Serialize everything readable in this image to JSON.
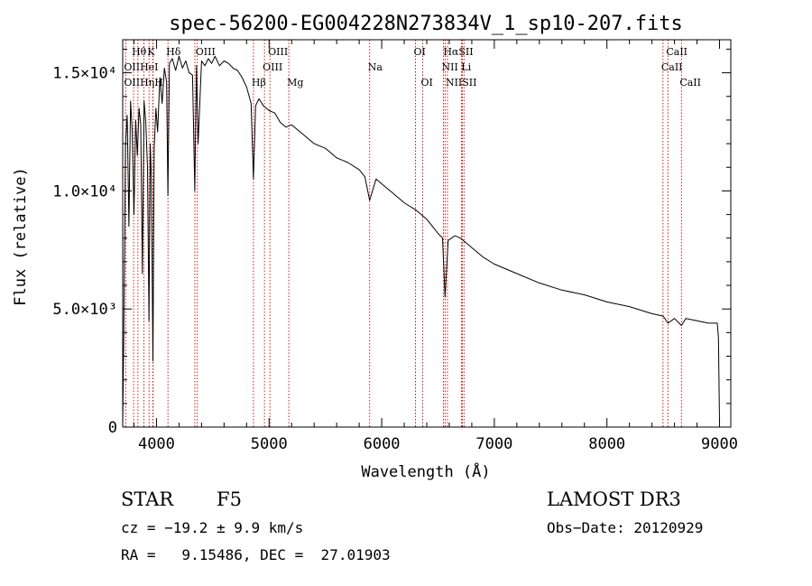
{
  "chart_data": {
    "type": "line",
    "title": "spec-56200-EG004228N273834V_1_sp10-207.fits",
    "xlabel": "Wavelength (Å)",
    "ylabel": "Flux (relative)",
    "xlim": [
      3700,
      9100
    ],
    "ylim": [
      0,
      16400
    ],
    "x_ticks": [
      {
        "value": 4000,
        "label": "4000"
      },
      {
        "value": 5000,
        "label": "5000"
      },
      {
        "value": 6000,
        "label": "6000"
      },
      {
        "value": 7000,
        "label": "7000"
      },
      {
        "value": 8000,
        "label": "8000"
      },
      {
        "value": 9000,
        "label": "9000"
      }
    ],
    "y_ticks": [
      {
        "value": 0,
        "label": "0"
      },
      {
        "value": 5000,
        "label": "5.0×10³"
      },
      {
        "value": 10000,
        "label": "1.0×10⁴"
      },
      {
        "value": 15000,
        "label": "1.5×10⁴"
      }
    ],
    "series": [
      {
        "name": "spectrum",
        "color": "#000000",
        "x": [
          3700,
          3710,
          3725,
          3740,
          3755,
          3770,
          3785,
          3800,
          3815,
          3830,
          3845,
          3860,
          3875,
          3890,
          3905,
          3920,
          3933,
          3945,
          3955,
          3968,
          3980,
          3995,
          4010,
          4030,
          4050,
          4070,
          4090,
          4101,
          4115,
          4140,
          4170,
          4200,
          4230,
          4260,
          4290,
          4320,
          4340,
          4355,
          4370,
          4400,
          4430,
          4460,
          4490,
          4520,
          4560,
          4600,
          4640,
          4680,
          4720,
          4760,
          4800,
          4840,
          4861,
          4880,
          4910,
          4950,
          5000,
          5050,
          5100,
          5150,
          5200,
          5300,
          5400,
          5500,
          5600,
          5700,
          5800,
          5850,
          5893,
          5950,
          6000,
          6100,
          6200,
          6300,
          6400,
          6500,
          6540,
          6563,
          6590,
          6650,
          6700,
          6800,
          6900,
          7000,
          7200,
          7400,
          7600,
          7800,
          8000,
          8200,
          8400,
          8500,
          8542,
          8600,
          8662,
          8700,
          8800,
          8900,
          8980,
          8990,
          9000
        ],
        "values": [
          0,
          4000,
          12000,
          13200,
          8500,
          13800,
          12500,
          9000,
          13000,
          11500,
          13500,
          12800,
          6500,
          13800,
          12900,
          11000,
          4500,
          12000,
          10500,
          2800,
          11800,
          13500,
          12500,
          14800,
          13700,
          15200,
          14600,
          9800,
          15400,
          15600,
          15100,
          15700,
          15200,
          15500,
          15000,
          14900,
          10000,
          15300,
          12000,
          15500,
          15300,
          15600,
          15400,
          15700,
          15300,
          15500,
          15400,
          15200,
          15100,
          14800,
          14400,
          13700,
          10500,
          13600,
          13900,
          13600,
          13400,
          13300,
          12900,
          12700,
          12800,
          12400,
          12000,
          11800,
          11400,
          11200,
          10900,
          10600,
          9600,
          10500,
          10300,
          9900,
          9500,
          9200,
          8800,
          8200,
          8000,
          5500,
          7900,
          8100,
          8000,
          7600,
          7200,
          6900,
          6500,
          6100,
          5800,
          5600,
          5300,
          5100,
          4800,
          4700,
          4400,
          4600,
          4300,
          4600,
          4500,
          4400,
          4400,
          3800,
          200
        ]
      }
    ],
    "line_markers": [
      {
        "name": "Hθ",
        "x": 3797
      },
      {
        "name": "OII",
        "x": 3727
      },
      {
        "name": "Hη",
        "x": 3835
      },
      {
        "name": "HeI",
        "x": 3889
      },
      {
        "name": "K",
        "x": 3934
      },
      {
        "name": "H",
        "x": 3968
      },
      {
        "name": "Hε",
        "x": 3970
      },
      {
        "name": "Hδ",
        "x": 4102
      },
      {
        "name": "OIII",
        "x": 4363
      },
      {
        "name": "Hγ",
        "x": 4341
      },
      {
        "name": "Hβ",
        "x": 4861
      },
      {
        "name": "OIII",
        "x": 4959
      },
      {
        "name": "OIII",
        "x": 5007
      },
      {
        "name": "Mg",
        "x": 5175
      },
      {
        "name": "Na",
        "x": 5893
      },
      {
        "name": "OI",
        "x": 6300
      },
      {
        "name": "OI",
        "x": 6364
      },
      {
        "name": "NII",
        "x": 6548
      },
      {
        "name": "Hα",
        "x": 6563
      },
      {
        "name": "NII",
        "x": 6584
      },
      {
        "name": "SII",
        "x": 6717
      },
      {
        "name": "Li",
        "x": 6708
      },
      {
        "name": "SII",
        "x": 6731
      },
      {
        "name": "CaII",
        "x": 8498
      },
      {
        "name": "CaII",
        "x": 8542
      },
      {
        "name": "CaII",
        "x": 8662
      }
    ],
    "marker_labels": [
      {
        "text": "Hθ",
        "x": 3797
      },
      {
        "text": "K",
        "x": 3934
      },
      {
        "text": "Hδ",
        "x": 4102
      },
      {
        "text": "OIII",
        "x": 4363
      },
      {
        "text": "OIII",
        "x": 5007
      },
      {
        "text": "OI",
        "x": 6300
      },
      {
        "text": "HαSII",
        "x": 6563
      },
      {
        "text": "CaII",
        "x": 8542
      },
      {
        "text": "OIIHeI",
        "x": 3727
      },
      {
        "text": "OIII",
        "x": 4959
      },
      {
        "text": "Na",
        "x": 5893
      },
      {
        "text": "NII Li",
        "x": 6548
      },
      {
        "text": "CaII",
        "x": 8498
      },
      {
        "text": "OIIHηH",
        "x": 3727
      },
      {
        "text": "Hβ",
        "x": 4861
      },
      {
        "text": "Mg",
        "x": 5175
      },
      {
        "text": "OI",
        "x": 6364
      },
      {
        "text": "NIISII",
        "x": 6584
      },
      {
        "text": "CaII",
        "x": 8662
      }
    ]
  },
  "info": {
    "class_label": "STAR",
    "subclass": "F5",
    "survey": "LAMOST DR3",
    "redshift": "cz = −19.2 ± 9.9 km/s",
    "obs_date": "Obs−Date: 20120929",
    "coords": "RA =   9.15486, DEC =  27.01903"
  }
}
